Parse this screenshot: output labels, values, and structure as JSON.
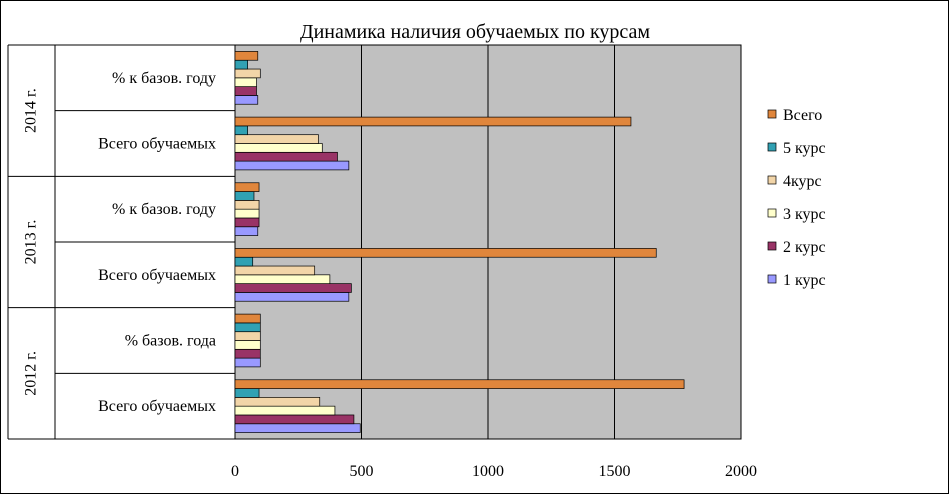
{
  "chart_data": {
    "type": "bar",
    "orientation": "horizontal",
    "title": "Динамика наличия обучаемых по курсам",
    "xlabel": "",
    "ylabel": "",
    "xlim": [
      0,
      2000
    ],
    "xticks": [
      0,
      500,
      1000,
      1500,
      2000
    ],
    "grid": true,
    "legend_position": "right",
    "groups": [
      {
        "year": "2012 г.",
        "categories": [
          "Всего обучаемых",
          "% базов. года"
        ]
      },
      {
        "year": "2013 г.",
        "categories": [
          "Всего обучаемых",
          "% к базов. году"
        ]
      },
      {
        "year": "2014 г.",
        "categories": [
          "Всего обучаемых",
          "% к базов. году"
        ]
      }
    ],
    "series": [
      {
        "name": "1 курс",
        "color": "#9999FF",
        "values": [
          495,
          100,
          450,
          90,
          450,
          90
        ]
      },
      {
        "name": "2 курс",
        "color": "#993366",
        "values": [
          470,
          100,
          460,
          95,
          405,
          85
        ]
      },
      {
        "name": "3 курс",
        "color": "#FFFFCC",
        "values": [
          395,
          100,
          375,
          95,
          345,
          85
        ]
      },
      {
        "name": "4курс",
        "color": "#F2D5A8",
        "values": [
          335,
          100,
          315,
          95,
          330,
          100
        ]
      },
      {
        "name": "5 курс",
        "color": "#31A1B3",
        "values": [
          95,
          100,
          70,
          75,
          50,
          50
        ]
      },
      {
        "name": "Всего",
        "color": "#E0863C",
        "values": [
          1775,
          100,
          1665,
          95,
          1565,
          90
        ]
      }
    ],
    "plot_background": "#C0C0C0"
  }
}
